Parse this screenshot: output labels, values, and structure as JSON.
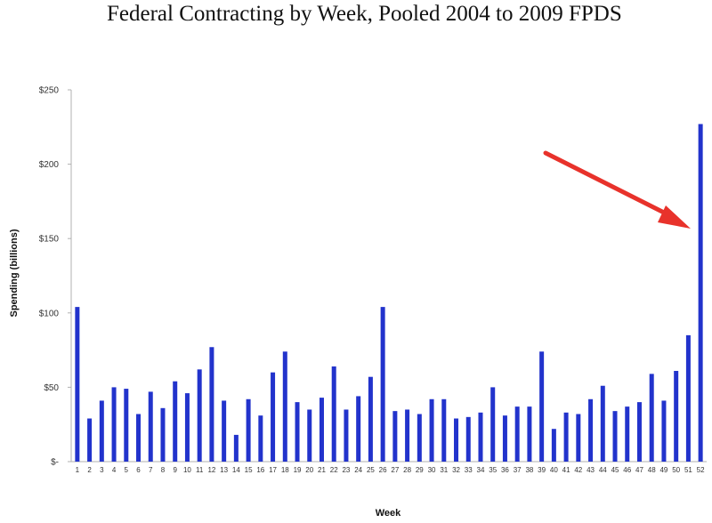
{
  "chart_data": {
    "type": "bar",
    "title": "Federal Contracting by Week, Pooled 2004 to 2009 FPDS",
    "xlabel": "Week",
    "ylabel": "Spending (billions)",
    "ylim": [
      0,
      250
    ],
    "yticks": [
      {
        "value": 0,
        "label": "$-"
      },
      {
        "value": 50,
        "label": "$50"
      },
      {
        "value": 100,
        "label": "$100"
      },
      {
        "value": 150,
        "label": "$150"
      },
      {
        "value": 200,
        "label": "$200"
      },
      {
        "value": 250,
        "label": "$250"
      }
    ],
    "grid": false,
    "bar_color": "#2233cc",
    "annotation": {
      "type": "arrow",
      "color": "#e8322b",
      "points_to_category": "52"
    },
    "categories": [
      "1",
      "2",
      "3",
      "4",
      "5",
      "6",
      "7",
      "8",
      "9",
      "10",
      "11",
      "12",
      "13",
      "14",
      "15",
      "16",
      "17",
      "18",
      "19",
      "20",
      "21",
      "22",
      "23",
      "24",
      "25",
      "26",
      "27",
      "28",
      "29",
      "30",
      "31",
      "32",
      "33",
      "34",
      "35",
      "36",
      "37",
      "38",
      "39",
      "40",
      "41",
      "42",
      "43",
      "44",
      "45",
      "46",
      "47",
      "48",
      "49",
      "50",
      "51",
      "52"
    ],
    "values": [
      104,
      29,
      41,
      50,
      49,
      32,
      47,
      36,
      54,
      46,
      62,
      77,
      41,
      18,
      42,
      31,
      60,
      74,
      40,
      35,
      43,
      64,
      35,
      44,
      57,
      104,
      34,
      35,
      32,
      42,
      42,
      29,
      30,
      33,
      50,
      31,
      37,
      37,
      74,
      22,
      33,
      32,
      42,
      51,
      34,
      37,
      40,
      59,
      41,
      61,
      85,
      227
    ]
  }
}
